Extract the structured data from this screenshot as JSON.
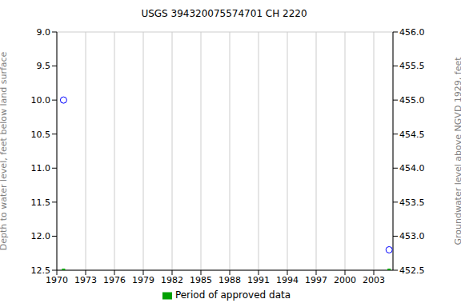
{
  "chart_data": {
    "type": "scatter",
    "title": "USGS 394320075574701 CH  2220",
    "y_label": "Depth to water level, feet below land surface",
    "y2_label": "Groundwater level above NGVD 1929, feet",
    "x": [
      1970.7,
      2004.6
    ],
    "xlim": [
      1970,
      2005
    ],
    "xticks": [
      1970,
      1973,
      1976,
      1979,
      1982,
      1985,
      1988,
      1991,
      1994,
      1997,
      2000,
      2003
    ],
    "ylim": [
      12.5,
      9
    ],
    "yticks": [
      {
        "value": 9,
        "label": "9.0"
      },
      {
        "value": 9.5,
        "label": "9.5"
      },
      {
        "value": 10,
        "label": "10.0"
      },
      {
        "value": 10.5,
        "label": "10.5"
      },
      {
        "value": 11,
        "label": "11.0"
      },
      {
        "value": 11.5,
        "label": "11.5"
      },
      {
        "value": 12,
        "label": "12.0"
      },
      {
        "value": 12.5,
        "label": "12.5"
      }
    ],
    "y2lim": [
      452.5,
      456
    ],
    "y2ticks": [
      {
        "value": 452.5,
        "label": "452.5"
      },
      {
        "value": 453,
        "label": "453.0"
      },
      {
        "value": 453.5,
        "label": "453.5"
      },
      {
        "value": 454,
        "label": "454.0"
      },
      {
        "value": 454.5,
        "label": "454.5"
      },
      {
        "value": 455,
        "label": "455.0"
      },
      {
        "value": 455.5,
        "label": "455.5"
      },
      {
        "value": 456,
        "label": "456.0"
      }
    ],
    "grid": true,
    "legend": "bottom",
    "series": [
      {
        "color": "#0000ff",
        "marker": "circle_open",
        "values": [
          10,
          12.2
        ]
      },
      {
        "name": "Period of approved data",
        "color": "#00a000",
        "marker": "square",
        "values": [
          12.5,
          12.5
        ]
      }
    ]
  }
}
